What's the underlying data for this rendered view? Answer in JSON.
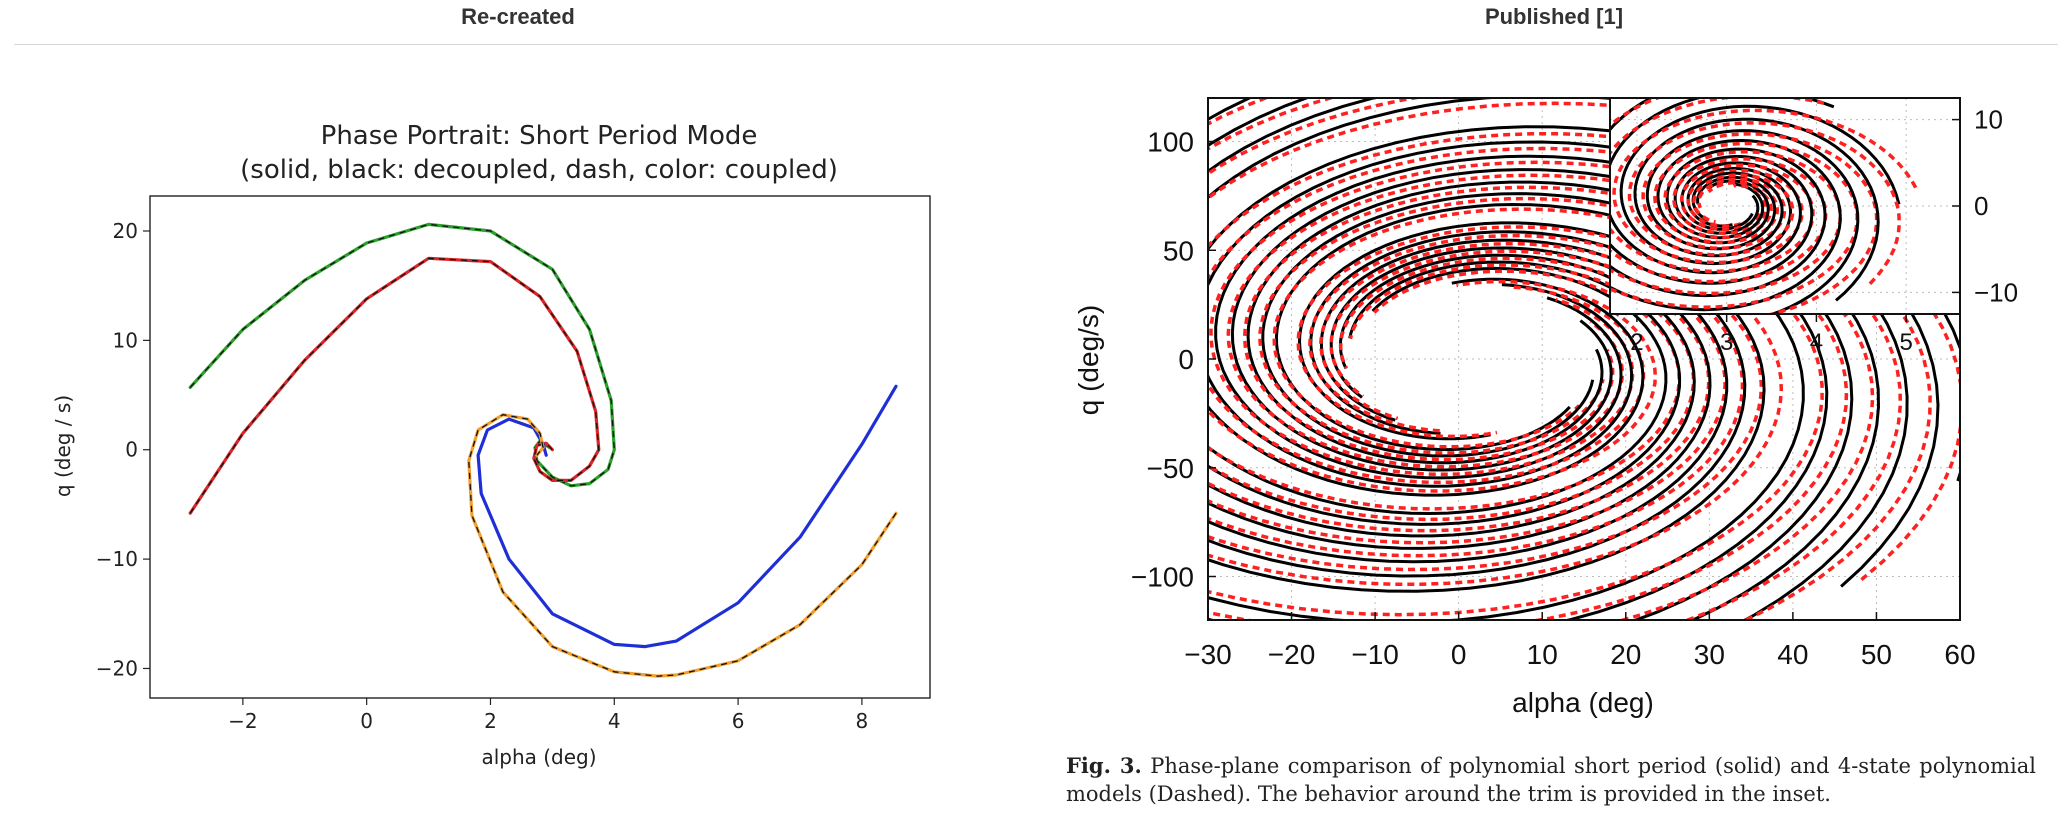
{
  "headers": {
    "left": "Re-created",
    "right": "Published [1]"
  },
  "chart_data": [
    {
      "type": "line",
      "title": "Phase Portrait: Short Period Mode",
      "subtitle": "(solid, black: decoupled, dash, color: coupled)",
      "xlabel": "alpha (deg)",
      "ylabel": "q (deg / s)",
      "xlim": [
        -3.5,
        9.1
      ],
      "ylim": [
        -22.7,
        23.2
      ],
      "xticks": [
        -2,
        0,
        2,
        4,
        6,
        8
      ],
      "yticks": [
        -20,
        -10,
        0,
        10,
        20
      ],
      "grid": false,
      "series": [
        {
          "color": "#2ca02c",
          "style": "solid+black-dash",
          "x": [
            -2.85,
            -2.0,
            -1.0,
            0.0,
            1.0,
            2.0,
            3.0,
            3.6,
            3.95,
            4.0,
            3.9,
            3.6,
            3.3,
            3.0,
            2.75,
            2.72,
            2.8,
            2.95
          ],
          "y": [
            5.7,
            11.0,
            15.5,
            18.9,
            20.6,
            20.0,
            16.5,
            11.0,
            4.5,
            0.0,
            -1.8,
            -3.1,
            -3.3,
            -2.5,
            -1.0,
            0.2,
            0.8,
            0.2
          ]
        },
        {
          "color": "#d62728",
          "style": "solid+black-dash",
          "x": [
            -2.85,
            -2.0,
            -1.0,
            0.0,
            1.0,
            2.0,
            2.8,
            3.4,
            3.7,
            3.75,
            3.6,
            3.3,
            3.0,
            2.8,
            2.7,
            2.75,
            2.9,
            3.0
          ],
          "y": [
            -5.8,
            1.5,
            8.2,
            13.8,
            17.5,
            17.2,
            14.0,
            9.0,
            3.5,
            0.0,
            -1.5,
            -2.8,
            -2.8,
            -2.0,
            -0.8,
            0.4,
            0.6,
            0.0
          ]
        },
        {
          "color": "#1f2fd6",
          "style": "solid",
          "x": [
            8.55,
            8.0,
            7.0,
            6.0,
            5.0,
            4.5,
            4.0,
            3.0,
            2.3,
            1.85,
            1.8,
            1.95,
            2.3,
            2.7,
            2.85,
            2.9
          ],
          "y": [
            5.8,
            0.5,
            -8.0,
            -14.0,
            -17.5,
            -18.0,
            -17.8,
            -15.0,
            -10.0,
            -4.0,
            -0.5,
            1.8,
            2.8,
            2.0,
            0.5,
            -0.5
          ]
        },
        {
          "color": "#f0a030",
          "style": "solid+black-dash",
          "x": [
            8.55,
            8.0,
            7.0,
            6.0,
            5.0,
            4.7,
            4.0,
            3.0,
            2.2,
            1.7,
            1.65,
            1.8,
            2.2,
            2.6,
            2.8,
            2.85,
            2.75
          ],
          "y": [
            -5.8,
            -10.5,
            -16.0,
            -19.3,
            -20.6,
            -20.7,
            -20.3,
            -18.0,
            -13.0,
            -6.0,
            -1.0,
            1.8,
            3.2,
            2.8,
            1.5,
            0.2,
            -0.5
          ]
        }
      ]
    },
    {
      "type": "line",
      "xlabel": "alpha (deg)",
      "ylabel": "q (deg/s)",
      "xlim": [
        -30,
        60
      ],
      "ylim": [
        -120,
        120
      ],
      "xticks": [
        -30,
        -20,
        -10,
        0,
        10,
        20,
        30,
        40,
        50,
        60
      ],
      "yticks": [
        -100,
        -50,
        0,
        50,
        100
      ],
      "grid": true,
      "legend": "none",
      "inset": {
        "xlim": [
          1.7,
          5.6
        ],
        "ylim": [
          -12.5,
          12.5
        ],
        "xticks": [
          2,
          3,
          4,
          5
        ],
        "yticks": [
          -10,
          0,
          10
        ],
        "position": "top-right"
      },
      "series": [
        {
          "name": "polynomial short period (solid)",
          "color": "#000000"
        },
        {
          "name": "4-state polynomial models (Dashed)",
          "color": "#ff2020"
        }
      ]
    }
  ],
  "caption": {
    "label": "Fig. 3.",
    "text": " Phase-plane comparison of polynomial short period (solid) and 4-state polynomial models (Dashed). The behavior around the trim is provided in the inset."
  }
}
